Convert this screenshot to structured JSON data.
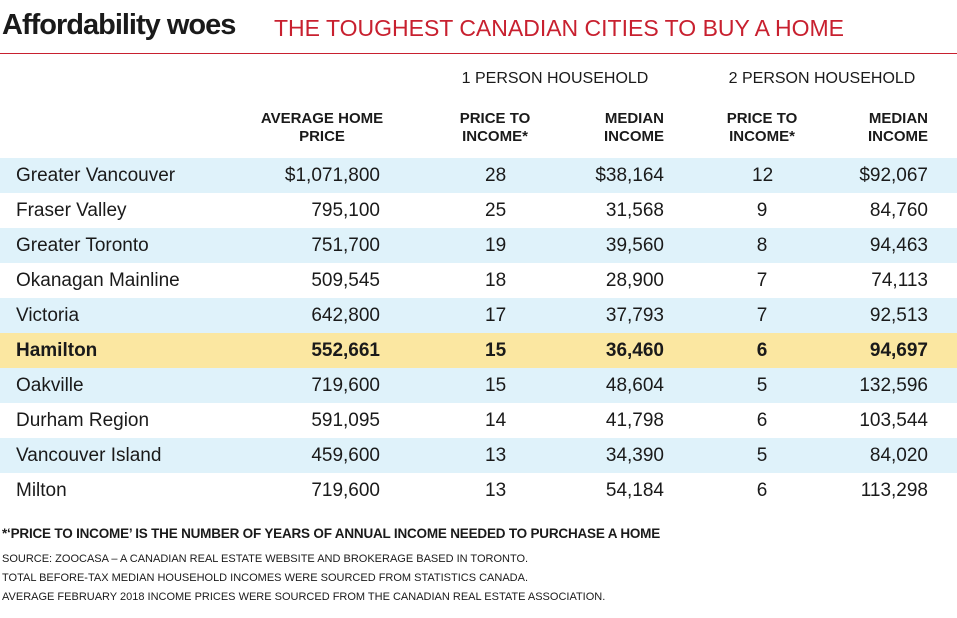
{
  "chart_data": {
    "type": "table",
    "title": "Affordability woes",
    "subtitle": "THE TOUGHEST CANADIAN CITIES TO BUY A HOME",
    "group_headers": [
      "1 PERSON HOUSEHOLD",
      "2 PERSON HOUSEHOLD"
    ],
    "columns": [
      [
        "AVERAGE HOME",
        "PRICE"
      ],
      [
        "PRICE TO",
        "INCOME*"
      ],
      [
        "MEDIAN",
        "INCOME"
      ],
      [
        "PRICE TO",
        "INCOME*"
      ],
      [
        "MEDIAN",
        "INCOME"
      ]
    ],
    "rows": [
      {
        "city": "Greater Vancouver",
        "price": "$1,071,800",
        "p2i_1": "28",
        "income_1": "$38,164",
        "p2i_2": "12",
        "income_2": "$92,067"
      },
      {
        "city": "Fraser Valley",
        "price": "795,100",
        "p2i_1": "25",
        "income_1": "31,568",
        "p2i_2": "9",
        "income_2": "84,760"
      },
      {
        "city": "Greater Toronto",
        "price": "751,700",
        "p2i_1": "19",
        "income_1": "39,560",
        "p2i_2": "8",
        "income_2": "94,463"
      },
      {
        "city": "Okanagan Mainline",
        "price": "509,545",
        "p2i_1": "18",
        "income_1": "28,900",
        "p2i_2": "7",
        "income_2": "74,113"
      },
      {
        "city": "Victoria",
        "price": "642,800",
        "p2i_1": "17",
        "income_1": "37,793",
        "p2i_2": "7",
        "income_2": "92,513"
      },
      {
        "city": "Hamilton",
        "price": "552,661",
        "p2i_1": "15",
        "income_1": "36,460",
        "p2i_2": "6",
        "income_2": "94,697",
        "highlight": true
      },
      {
        "city": "Oakville",
        "price": "719,600",
        "p2i_1": "15",
        "income_1": "48,604",
        "p2i_2": "5",
        "income_2": "132,596"
      },
      {
        "city": "Durham Region",
        "price": "591,095",
        "p2i_1": "14",
        "income_1": "41,798",
        "p2i_2": "6",
        "income_2": "103,544"
      },
      {
        "city": "Vancouver Island",
        "price": "459,600",
        "p2i_1": "13",
        "income_1": "34,390",
        "p2i_2": "5",
        "income_2": "84,020"
      },
      {
        "city": "Milton",
        "price": "719,600",
        "p2i_1": "13",
        "income_1": "54,184",
        "p2i_2": "6",
        "income_2": "113,298"
      }
    ],
    "footnote": "*‘PRICE TO INCOME’ IS THE NUMBER OF YEARS OF ANNUAL INCOME NEEDED TO PURCHASE A HOME",
    "source_lines": [
      "SOURCE: ZOOCASA – A CANADIAN REAL ESTATE WEBSITE AND BROKERAGE BASED IN TORONTO.",
      "TOTAL BEFORE-TAX MEDIAN HOUSEHOLD INCOMES WERE SOURCED FROM STATISTICS CANADA.",
      "AVERAGE FEBRUARY 2018 INCOME PRICES WERE SOURCED FROM THE CANADIAN REAL ESTATE ASSOCIATION."
    ]
  },
  "colors": {
    "title_text": "#1a1a1a",
    "subtitle_text": "#c8202f",
    "rule": "#c8202f",
    "stripe": "#dff2fa",
    "highlight": "#fbe7a1"
  }
}
